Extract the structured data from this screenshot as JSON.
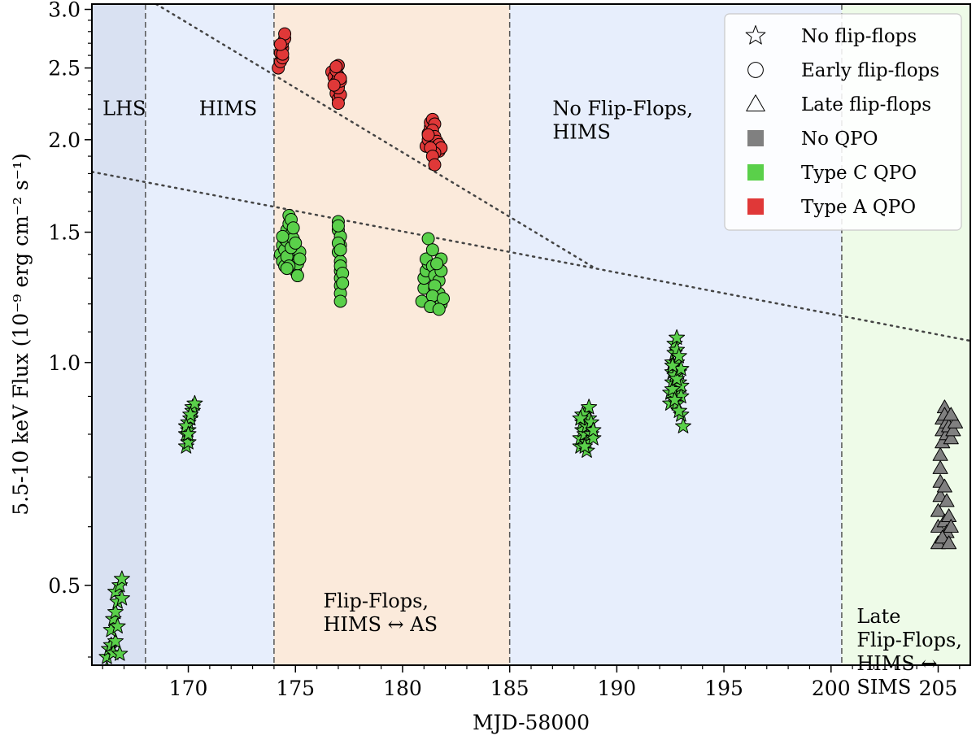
{
  "chart_data": {
    "type": "scatter",
    "xlabel": "MJD-58000",
    "ylabel": "5.5-10 keV Flux (10⁻⁹ erg cm⁻² s⁻¹)",
    "xlim": [
      165.5,
      206.5
    ],
    "ylim": [
      0.39,
      3.05
    ],
    "yscale": "log",
    "xticks": [
      170,
      175,
      180,
      185,
      190,
      195,
      200,
      205
    ],
    "yticks": [
      0.5,
      1.0,
      1.5,
      2.0,
      2.5,
      3.0
    ],
    "ytick_labels": [
      "0.5",
      "1.0",
      "1.5",
      "2.0",
      "2.5",
      "3.0"
    ],
    "regions": [
      {
        "x0": 165.5,
        "x1": 168.0,
        "color": "#d9e1f2",
        "lines": [
          "LHS"
        ],
        "label_at": [
          166.0,
          2.16
        ]
      },
      {
        "x0": 168.0,
        "x1": 174.0,
        "color": "#e7eefc",
        "lines": [
          "HIMS"
        ],
        "label_at": [
          170.5,
          2.16
        ]
      },
      {
        "x0": 174.0,
        "x1": 185.0,
        "color": "#fbeadb",
        "lines": [
          "Flip-Flops,",
          "HIMS ↔ AS"
        ],
        "label_at": [
          176.3,
          0.467
        ]
      },
      {
        "x0": 185.0,
        "x1": 200.5,
        "color": "#e7eefc",
        "lines": [
          "No Flip-Flops,",
          "HIMS"
        ],
        "label_at": [
          187.0,
          2.16
        ]
      },
      {
        "x0": 200.5,
        "x1": 206.5,
        "color": "#eefbe8",
        "lines": [
          "Late",
          "Flip-Flops,",
          "HIMS ↔",
          "SIMS"
        ],
        "label_at": [
          201.2,
          0.445
        ]
      }
    ],
    "dividers": [
      168.0,
      174.0,
      185.0,
      200.5
    ],
    "trend_lines": [
      {
        "points": [
          [
            168.5,
            3.05
          ],
          [
            189.0,
            1.34
          ]
        ]
      },
      {
        "points": [
          [
            165.5,
            1.81
          ],
          [
            189.0,
            1.34
          ],
          [
            206.5,
            1.07
          ]
        ]
      }
    ],
    "legend": {
      "position": "top-right",
      "entries": [
        {
          "label": "No flip-flops",
          "marker": "star"
        },
        {
          "label": "Early flip-flops",
          "marker": "circle"
        },
        {
          "label": "Late flip-flops",
          "marker": "triangle"
        },
        {
          "label": "No QPO",
          "marker": "square",
          "color": "#808080"
        },
        {
          "label": "Type C QPO",
          "marker": "square",
          "color": "#5ad04a"
        },
        {
          "label": "Type A QPO",
          "marker": "square",
          "color": "#e03838"
        }
      ]
    },
    "colors": {
      "none": "#808080",
      "C": "#5ad04a",
      "A": "#e03838"
    },
    "series": [
      {
        "shape": "star",
        "qpo": "C",
        "points": [
          [
            166.2,
            0.385
          ],
          [
            166.2,
            0.4
          ],
          [
            166.3,
            0.41
          ],
          [
            166.4,
            0.415
          ],
          [
            166.5,
            0.405
          ],
          [
            166.6,
            0.42
          ],
          [
            166.4,
            0.435
          ],
          [
            166.5,
            0.45
          ],
          [
            166.6,
            0.46
          ],
          [
            166.7,
            0.475
          ],
          [
            166.6,
            0.49
          ],
          [
            166.8,
            0.5
          ],
          [
            166.9,
            0.51
          ],
          [
            166.7,
            0.44
          ],
          [
            166.8,
            0.38
          ],
          [
            166.8,
            0.404
          ],
          [
            166.6,
            0.365
          ],
          [
            166.7,
            0.355
          ],
          [
            166.9,
            0.48
          ]
        ]
      },
      {
        "shape": "star",
        "qpo": "C",
        "points": [
          [
            169.9,
            0.77
          ],
          [
            170.0,
            0.78
          ],
          [
            169.9,
            0.8
          ],
          [
            170.0,
            0.81
          ],
          [
            170.0,
            0.83
          ],
          [
            170.1,
            0.84
          ],
          [
            170.2,
            0.86
          ],
          [
            170.2,
            0.87
          ],
          [
            170.3,
            0.88
          ],
          [
            170.1,
            0.85
          ],
          [
            169.9,
            0.82
          ],
          [
            170.0,
            0.8
          ]
        ]
      },
      {
        "shape": "circle",
        "qpo": "C",
        "points": [
          [
            174.3,
            1.4
          ],
          [
            174.4,
            1.44
          ],
          [
            174.5,
            1.47
          ],
          [
            174.5,
            1.42
          ],
          [
            174.6,
            1.46
          ],
          [
            174.6,
            1.51
          ],
          [
            174.7,
            1.54
          ],
          [
            174.7,
            1.58
          ],
          [
            174.8,
            1.56
          ],
          [
            174.8,
            1.49
          ],
          [
            174.9,
            1.44
          ],
          [
            174.9,
            1.4
          ],
          [
            175.0,
            1.37
          ],
          [
            175.0,
            1.33
          ],
          [
            175.1,
            1.31
          ],
          [
            175.1,
            1.36
          ],
          [
            175.2,
            1.41
          ],
          [
            175.2,
            1.38
          ],
          [
            174.4,
            1.37
          ],
          [
            174.5,
            1.35
          ],
          [
            174.6,
            1.39
          ],
          [
            174.8,
            1.43
          ],
          [
            174.9,
            1.47
          ],
          [
            175.0,
            1.45
          ],
          [
            174.4,
            1.48
          ],
          [
            174.7,
            1.35
          ],
          [
            174.9,
            1.52
          ],
          [
            174.6,
            1.34
          ]
        ]
      },
      {
        "shape": "circle",
        "qpo": "C",
        "points": [
          [
            177.0,
            1.55
          ],
          [
            177.0,
            1.51
          ],
          [
            177.1,
            1.48
          ],
          [
            177.1,
            1.44
          ],
          [
            177.0,
            1.41
          ],
          [
            177.1,
            1.37
          ],
          [
            177.1,
            1.33
          ],
          [
            177.1,
            1.3
          ],
          [
            177.1,
            1.27
          ],
          [
            177.1,
            1.24
          ],
          [
            177.1,
            1.21
          ],
          [
            177.0,
            1.45
          ],
          [
            177.1,
            1.35
          ],
          [
            177.2,
            1.32
          ],
          [
            177.2,
            1.28
          ],
          [
            177.0,
            1.53
          ],
          [
            177.1,
            1.42
          ]
        ]
      },
      {
        "shape": "circle",
        "qpo": "C",
        "points": [
          [
            180.9,
            1.21
          ],
          [
            181.0,
            1.26
          ],
          [
            181.0,
            1.3
          ],
          [
            181.1,
            1.33
          ],
          [
            181.2,
            1.36
          ],
          [
            181.1,
            1.38
          ],
          [
            181.2,
            1.47
          ],
          [
            181.4,
            1.42
          ],
          [
            181.4,
            1.35
          ],
          [
            181.5,
            1.31
          ],
          [
            181.5,
            1.26
          ],
          [
            181.6,
            1.22
          ],
          [
            181.6,
            1.19
          ],
          [
            181.7,
            1.24
          ],
          [
            181.7,
            1.29
          ],
          [
            181.8,
            1.33
          ],
          [
            181.8,
            1.38
          ],
          [
            181.8,
            1.2
          ],
          [
            181.5,
            1.27
          ],
          [
            181.4,
            1.23
          ],
          [
            181.6,
            1.36
          ],
          [
            181.3,
            1.19
          ],
          [
            181.9,
            1.22
          ],
          [
            181.7,
            1.18
          ]
        ]
      },
      {
        "shape": "circle",
        "qpo": "A",
        "points": [
          [
            174.2,
            2.5
          ],
          [
            174.3,
            2.55
          ],
          [
            174.4,
            2.58
          ],
          [
            174.3,
            2.62
          ],
          [
            174.4,
            2.66
          ],
          [
            174.4,
            2.7
          ],
          [
            174.5,
            2.74
          ],
          [
            174.5,
            2.78
          ],
          [
            174.4,
            2.61
          ],
          [
            174.3,
            2.69
          ]
        ]
      },
      {
        "shape": "circle",
        "qpo": "A",
        "points": [
          [
            176.7,
            2.47
          ],
          [
            176.8,
            2.43
          ],
          [
            176.9,
            2.39
          ],
          [
            177.0,
            2.36
          ],
          [
            176.9,
            2.31
          ],
          [
            177.0,
            2.27
          ],
          [
            177.1,
            2.3
          ],
          [
            177.0,
            2.35
          ],
          [
            177.1,
            2.4
          ],
          [
            177.0,
            2.44
          ],
          [
            176.9,
            2.48
          ],
          [
            177.0,
            2.52
          ],
          [
            176.9,
            2.51
          ],
          [
            177.1,
            2.42
          ],
          [
            176.8,
            2.37
          ],
          [
            177.0,
            2.24
          ]
        ]
      },
      {
        "shape": "circle",
        "qpo": "A",
        "points": [
          [
            181.1,
            1.96
          ],
          [
            181.2,
            2.0
          ],
          [
            181.2,
            2.04
          ],
          [
            181.3,
            2.08
          ],
          [
            181.3,
            2.11
          ],
          [
            181.4,
            2.13
          ],
          [
            181.5,
            2.1
          ],
          [
            181.4,
            2.06
          ],
          [
            181.5,
            2.02
          ],
          [
            181.6,
            1.99
          ],
          [
            181.6,
            1.96
          ],
          [
            181.7,
            1.93
          ],
          [
            181.7,
            1.97
          ],
          [
            181.8,
            1.95
          ],
          [
            181.5,
            1.92
          ],
          [
            181.3,
            1.95
          ],
          [
            181.4,
            1.9
          ],
          [
            181.5,
            1.85
          ],
          [
            181.2,
            2.03
          ]
        ]
      },
      {
        "shape": "star",
        "qpo": "C",
        "points": [
          [
            188.3,
            0.77
          ],
          [
            188.3,
            0.79
          ],
          [
            188.4,
            0.81
          ],
          [
            188.4,
            0.83
          ],
          [
            188.5,
            0.85
          ],
          [
            188.5,
            0.8
          ],
          [
            188.6,
            0.78
          ],
          [
            188.6,
            0.82
          ],
          [
            188.7,
            0.84
          ],
          [
            188.7,
            0.87
          ],
          [
            188.8,
            0.8
          ],
          [
            188.9,
            0.79
          ],
          [
            188.6,
            0.76
          ],
          [
            188.4,
            0.85
          ],
          [
            188.5,
            0.77
          ],
          [
            188.8,
            0.83
          ],
          [
            188.3,
            0.84
          ],
          [
            188.9,
            0.81
          ]
        ]
      },
      {
        "shape": "star",
        "qpo": "C",
        "points": [
          [
            192.5,
            0.88
          ],
          [
            192.5,
            0.91
          ],
          [
            192.6,
            0.94
          ],
          [
            192.6,
            0.97
          ],
          [
            192.6,
            1.0
          ],
          [
            192.7,
            1.03
          ],
          [
            192.7,
            1.06
          ],
          [
            192.8,
            1.08
          ],
          [
            192.8,
            1.04
          ],
          [
            192.8,
            1.0
          ],
          [
            192.9,
            0.97
          ],
          [
            192.9,
            0.94
          ],
          [
            192.9,
            0.91
          ],
          [
            192.8,
            0.88
          ],
          [
            193.0,
            0.85
          ],
          [
            193.0,
            0.9
          ],
          [
            193.0,
            0.93
          ],
          [
            193.1,
            0.82
          ],
          [
            192.9,
            1.02
          ],
          [
            192.6,
            0.92
          ],
          [
            192.7,
            0.96
          ],
          [
            192.8,
            0.95
          ],
          [
            193.0,
            0.98
          ],
          [
            192.7,
            0.89
          ],
          [
            192.9,
            0.86
          ],
          [
            192.6,
            0.99
          ]
        ]
      },
      {
        "shape": "triangle",
        "qpo": "none",
        "points": [
          [
            205.0,
            0.57
          ],
          [
            205.0,
            0.6
          ],
          [
            205.0,
            0.63
          ],
          [
            205.1,
            0.66
          ],
          [
            205.1,
            0.69
          ],
          [
            205.1,
            0.72
          ],
          [
            205.1,
            0.75
          ],
          [
            205.2,
            0.78
          ],
          [
            205.2,
            0.81
          ],
          [
            205.2,
            0.84
          ],
          [
            205.3,
            0.87
          ],
          [
            205.3,
            0.85
          ],
          [
            205.4,
            0.83
          ],
          [
            205.4,
            0.8
          ],
          [
            205.5,
            0.82
          ],
          [
            205.6,
            0.79
          ],
          [
            205.7,
            0.81
          ],
          [
            205.8,
            0.83
          ],
          [
            205.6,
            0.85
          ],
          [
            205.3,
            0.61
          ],
          [
            205.4,
            0.59
          ],
          [
            205.5,
            0.62
          ],
          [
            205.2,
            0.58
          ],
          [
            205.6,
            0.6
          ],
          [
            205.4,
            0.65
          ],
          [
            205.3,
            0.68
          ],
          [
            205.5,
            0.57
          ]
        ]
      }
    ]
  }
}
